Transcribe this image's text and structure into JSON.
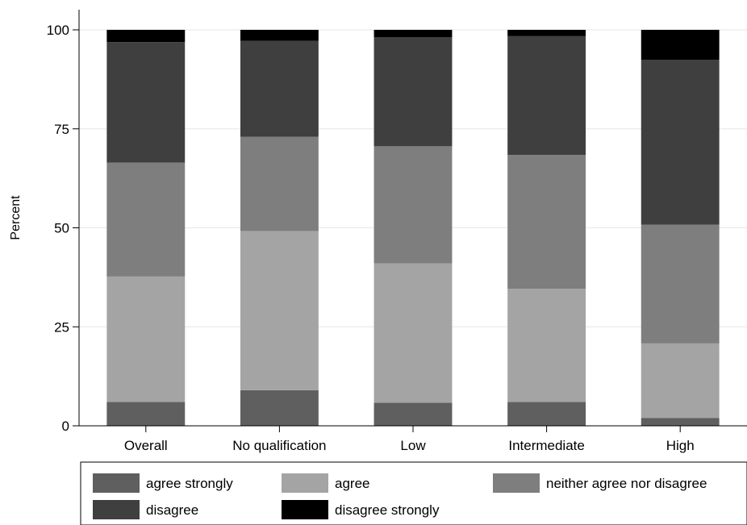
{
  "chart_data": {
    "type": "bar",
    "stacked": true,
    "orientation": "vertical",
    "ylabel": "Percent",
    "xlabel": "",
    "ylim": [
      0,
      100
    ],
    "yticks": [
      0,
      25,
      50,
      75,
      100
    ],
    "grid": true,
    "legend_position": "bottom",
    "categories": [
      "Overall",
      "No qualification",
      "Low",
      "Intermediate",
      "High"
    ],
    "series": [
      {
        "name": "agree strongly",
        "color": "#5f5f5f",
        "values": [
          6,
          9,
          5.8,
          6,
          2
        ]
      },
      {
        "name": "agree",
        "color": "#a4a4a4",
        "values": [
          31.7,
          40.2,
          35.2,
          28.6,
          18.8
        ]
      },
      {
        "name": "neither agree nor disagree",
        "color": "#7e7e7e",
        "values": [
          28.8,
          23.8,
          29.6,
          33.8,
          30
        ]
      },
      {
        "name": "disagree",
        "color": "#3f3f3f",
        "values": [
          30.4,
          24.2,
          27.5,
          30,
          41.6
        ]
      },
      {
        "name": "disagree strongly",
        "color": "#000000",
        "values": [
          3.1,
          2.8,
          1.9,
          1.6,
          7.6
        ]
      }
    ]
  }
}
